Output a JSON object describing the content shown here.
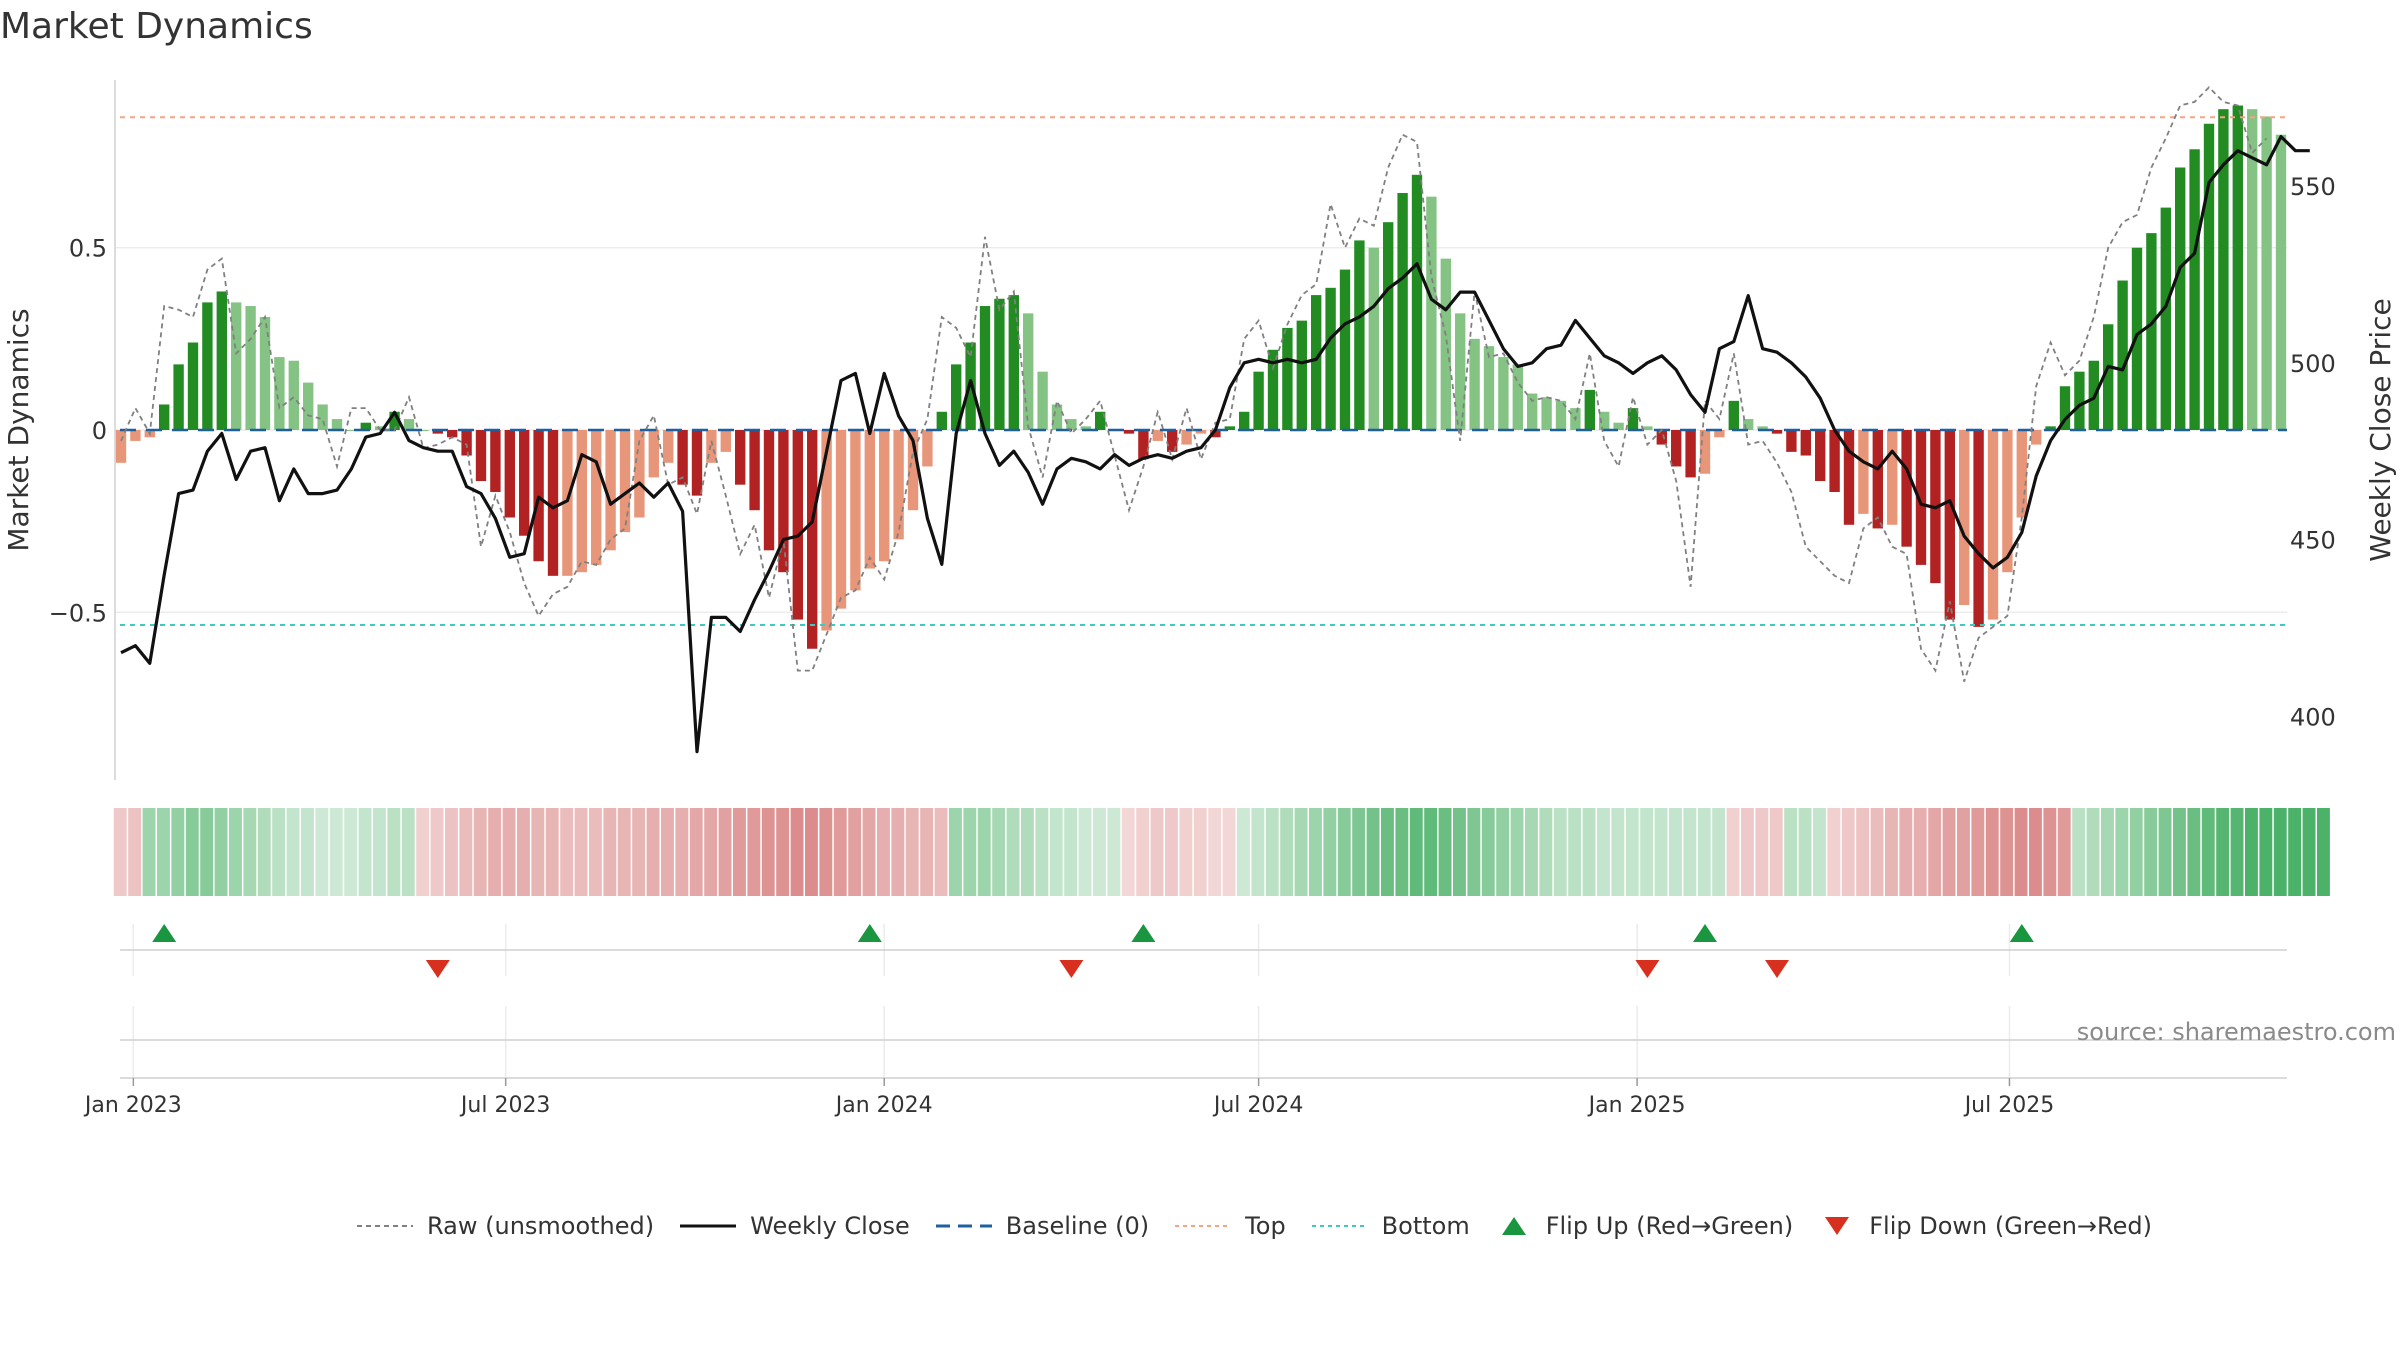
{
  "title": "Market Dynamics",
  "source": "source: sharemaestro.com",
  "legend": {
    "raw": "Raw (unsmoothed)",
    "close": "Weekly Close",
    "baseline": "Baseline (0)",
    "top": "Top",
    "bottom": "Bottom",
    "flip_up": "Flip Up (Red→Green)",
    "flip_down": "Flip Down (Green→Red)"
  },
  "colors": {
    "pos_strong": "#228B22",
    "pos_light": "#84C384",
    "neg_strong": "#B22222",
    "neg_light": "#E8967A",
    "close_line": "#111111",
    "raw_line": "#808080",
    "baseline": "#1f5fa0",
    "top_line": "#F4A582",
    "bottom_line": "#40C9C0",
    "flip_up": "#1a9641",
    "flip_down": "#d7301f"
  },
  "chart_data": {
    "type": "bar",
    "x_start": "2022-12-26",
    "x_step_days": 7,
    "xticks": [
      "Jan 2023",
      "Jul 2023",
      "Jan 2024",
      "Jul 2024",
      "Jan 2025",
      "Jul 2025"
    ],
    "xtick_dates": [
      "2023-01-01",
      "2023-07-01",
      "2024-01-01",
      "2024-07-01",
      "2025-01-01",
      "2025-07-01"
    ],
    "y_left": {
      "label": "Market Dynamics",
      "ticks": [
        0.5,
        0,
        -0.5
      ],
      "tick_labels": [
        "0.5",
        "0",
        "−0.5"
      ],
      "range": [
        -0.96,
        0.96
      ]
    },
    "y_right": {
      "label": "Weekly Close Price",
      "ticks": [
        400,
        450,
        500,
        550
      ],
      "range": [
        382,
        580
      ]
    },
    "top": 0.858,
    "bottom": -0.535,
    "baseline": 0,
    "smoothed": [
      -0.09,
      -0.03,
      -0.02,
      0.07,
      0.18,
      0.24,
      0.35,
      0.38,
      0.35,
      0.34,
      0.31,
      0.2,
      0.19,
      0.13,
      0.07,
      0.03,
      0.0,
      0.02,
      0.01,
      0.05,
      0.03,
      0.0,
      -0.01,
      -0.02,
      -0.07,
      -0.14,
      -0.17,
      -0.24,
      -0.29,
      -0.36,
      -0.4,
      -0.4,
      -0.39,
      -0.37,
      -0.33,
      -0.28,
      -0.24,
      -0.13,
      -0.09,
      -0.15,
      -0.18,
      -0.09,
      -0.06,
      -0.15,
      -0.22,
      -0.33,
      -0.39,
      -0.52,
      -0.6,
      -0.55,
      -0.49,
      -0.44,
      -0.38,
      -0.36,
      -0.3,
      -0.22,
      -0.1,
      0.05,
      0.18,
      0.24,
      0.34,
      0.36,
      0.37,
      0.32,
      0.16,
      0.07,
      0.03,
      0.01,
      0.05,
      0.0,
      -0.01,
      -0.08,
      -0.03,
      -0.06,
      -0.04,
      -0.01,
      -0.02,
      0.01,
      0.05,
      0.16,
      0.22,
      0.28,
      0.3,
      0.37,
      0.39,
      0.44,
      0.52,
      0.5,
      0.57,
      0.65,
      0.7,
      0.64,
      0.47,
      0.32,
      0.25,
      0.23,
      0.2,
      0.18,
      0.1,
      0.09,
      0.08,
      0.06,
      0.11,
      0.05,
      0.02,
      0.06,
      0.01,
      -0.04,
      -0.1,
      -0.13,
      -0.12,
      -0.02,
      0.08,
      0.03,
      0.01,
      -0.01,
      -0.06,
      -0.07,
      -0.14,
      -0.17,
      -0.26,
      -0.23,
      -0.27,
      -0.26,
      -0.32,
      -0.37,
      -0.42,
      -0.52,
      -0.48,
      -0.54,
      -0.52,
      -0.39,
      -0.24,
      -0.04,
      0.01,
      0.12,
      0.16,
      0.19,
      0.29,
      0.41,
      0.5,
      0.54,
      0.61,
      0.72,
      0.77,
      0.84,
      0.88,
      0.89,
      0.88,
      0.86,
      0.81
    ],
    "raw": [
      -0.03,
      0.06,
      -0.01,
      0.34,
      0.33,
      0.31,
      0.44,
      0.47,
      0.21,
      0.25,
      0.31,
      0.06,
      0.09,
      0.04,
      0.03,
      -0.1,
      0.06,
      0.06,
      0.0,
      0.0,
      0.09,
      -0.05,
      -0.04,
      -0.02,
      -0.04,
      -0.32,
      -0.18,
      -0.28,
      -0.42,
      -0.51,
      -0.45,
      -0.43,
      -0.36,
      -0.37,
      -0.3,
      -0.27,
      -0.03,
      0.04,
      -0.15,
      -0.13,
      -0.23,
      -0.03,
      -0.18,
      -0.34,
      -0.26,
      -0.46,
      -0.3,
      -0.66,
      -0.66,
      -0.56,
      -0.46,
      -0.44,
      -0.35,
      -0.41,
      -0.28,
      -0.06,
      0.03,
      0.31,
      0.28,
      0.2,
      0.53,
      0.33,
      0.38,
      0.01,
      -0.13,
      0.08,
      -0.01,
      0.03,
      0.08,
      -0.07,
      -0.22,
      -0.1,
      0.05,
      -0.08,
      0.06,
      -0.08,
      0.02,
      0.03,
      0.25,
      0.3,
      0.17,
      0.29,
      0.37,
      0.4,
      0.62,
      0.5,
      0.58,
      0.56,
      0.72,
      0.81,
      0.79,
      0.42,
      0.26,
      -0.03,
      0.38,
      0.2,
      0.21,
      0.13,
      0.08,
      0.09,
      0.08,
      0.03,
      0.21,
      -0.03,
      -0.1,
      0.09,
      -0.04,
      0.0,
      -0.14,
      -0.43,
      0.08,
      0.03,
      0.21,
      -0.04,
      -0.03,
      -0.09,
      -0.17,
      -0.32,
      -0.36,
      -0.4,
      -0.42,
      -0.27,
      -0.24,
      -0.32,
      -0.34,
      -0.6,
      -0.66,
      -0.47,
      -0.69,
      -0.57,
      -0.54,
      -0.51,
      -0.24,
      0.12,
      0.24,
      0.15,
      0.19,
      0.31,
      0.5,
      0.57,
      0.59,
      0.72,
      0.8,
      0.89,
      0.9,
      0.94,
      0.9,
      0.89,
      0.76,
      0.8
    ],
    "close": [
      418,
      420,
      415,
      440,
      463,
      464,
      475,
      480,
      467,
      475,
      476,
      461,
      470,
      463,
      463,
      464,
      470,
      479,
      480,
      486,
      478,
      476,
      475,
      475,
      465,
      463,
      456,
      445,
      446,
      462,
      459,
      461,
      474,
      472,
      460,
      463,
      466,
      462,
      466,
      458,
      390,
      428,
      428,
      424,
      433,
      441,
      450,
      451,
      455,
      475,
      495,
      497,
      480,
      497,
      485,
      478,
      456,
      443,
      480,
      495,
      480,
      471,
      475,
      469,
      460,
      470,
      473,
      472,
      470,
      474,
      471,
      473,
      474,
      473,
      475,
      476,
      481,
      493,
      500,
      501,
      500,
      501,
      500,
      501,
      507,
      511,
      513,
      516,
      521,
      524,
      528,
      518,
      515,
      520,
      520,
      512,
      504,
      499,
      500,
      504,
      505,
      512,
      507,
      502,
      500,
      497,
      500,
      502,
      498,
      491,
      486,
      504,
      506,
      519,
      504,
      503,
      500,
      496,
      490,
      481,
      475,
      472,
      470,
      475,
      470,
      460,
      459,
      461,
      451,
      446,
      442,
      445,
      452,
      468,
      478,
      484,
      488,
      490,
      499,
      498,
      508,
      511,
      516,
      527,
      531,
      551,
      556,
      560,
      558,
      556,
      564,
      560,
      560
    ],
    "trend_band": [
      -0.4,
      -0.45,
      0.5,
      0.5,
      0.55,
      0.6,
      0.6,
      0.55,
      0.5,
      0.45,
      0.4,
      0.35,
      0.3,
      0.3,
      0.25,
      0.25,
      0.25,
      0.3,
      0.3,
      0.35,
      0.35,
      -0.35,
      -0.4,
      -0.45,
      -0.5,
      -0.55,
      -0.6,
      -0.6,
      -0.6,
      -0.55,
      -0.55,
      -0.5,
      -0.5,
      -0.5,
      -0.55,
      -0.55,
      -0.55,
      -0.6,
      -0.6,
      -0.6,
      -0.65,
      -0.65,
      -0.7,
      -0.75,
      -0.75,
      -0.8,
      -0.8,
      -0.85,
      -0.85,
      -0.8,
      -0.75,
      -0.7,
      -0.65,
      -0.6,
      -0.6,
      -0.55,
      -0.55,
      -0.5,
      0.5,
      0.5,
      0.5,
      0.45,
      0.4,
      0.4,
      0.35,
      0.3,
      0.3,
      0.25,
      0.25,
      0.25,
      -0.3,
      -0.35,
      -0.4,
      -0.4,
      -0.35,
      -0.35,
      -0.3,
      -0.3,
      0.25,
      0.3,
      0.35,
      0.4,
      0.45,
      0.5,
      0.55,
      0.6,
      0.65,
      0.7,
      0.75,
      0.75,
      0.8,
      0.8,
      0.75,
      0.7,
      0.65,
      0.6,
      0.55,
      0.5,
      0.45,
      0.4,
      0.35,
      0.35,
      0.35,
      0.3,
      0.3,
      0.3,
      0.3,
      0.3,
      0.3,
      0.3,
      0.3,
      0.3,
      -0.35,
      -0.4,
      -0.4,
      -0.4,
      0.35,
      0.35,
      0.3,
      -0.35,
      -0.4,
      -0.45,
      -0.5,
      -0.55,
      -0.6,
      -0.6,
      -0.65,
      -0.7,
      -0.7,
      -0.75,
      -0.8,
      -0.8,
      -0.85,
      -0.85,
      -0.8,
      -0.75,
      0.35,
      0.4,
      0.45,
      0.5,
      0.55,
      0.6,
      0.65,
      0.7,
      0.75,
      0.8,
      0.85,
      0.85,
      0.9,
      0.9,
      0.9,
      0.9,
      0.9,
      0.9
    ],
    "flips_up": [
      3,
      52,
      71,
      110,
      132
    ],
    "flips_down": [
      22,
      66,
      106,
      115
    ]
  }
}
